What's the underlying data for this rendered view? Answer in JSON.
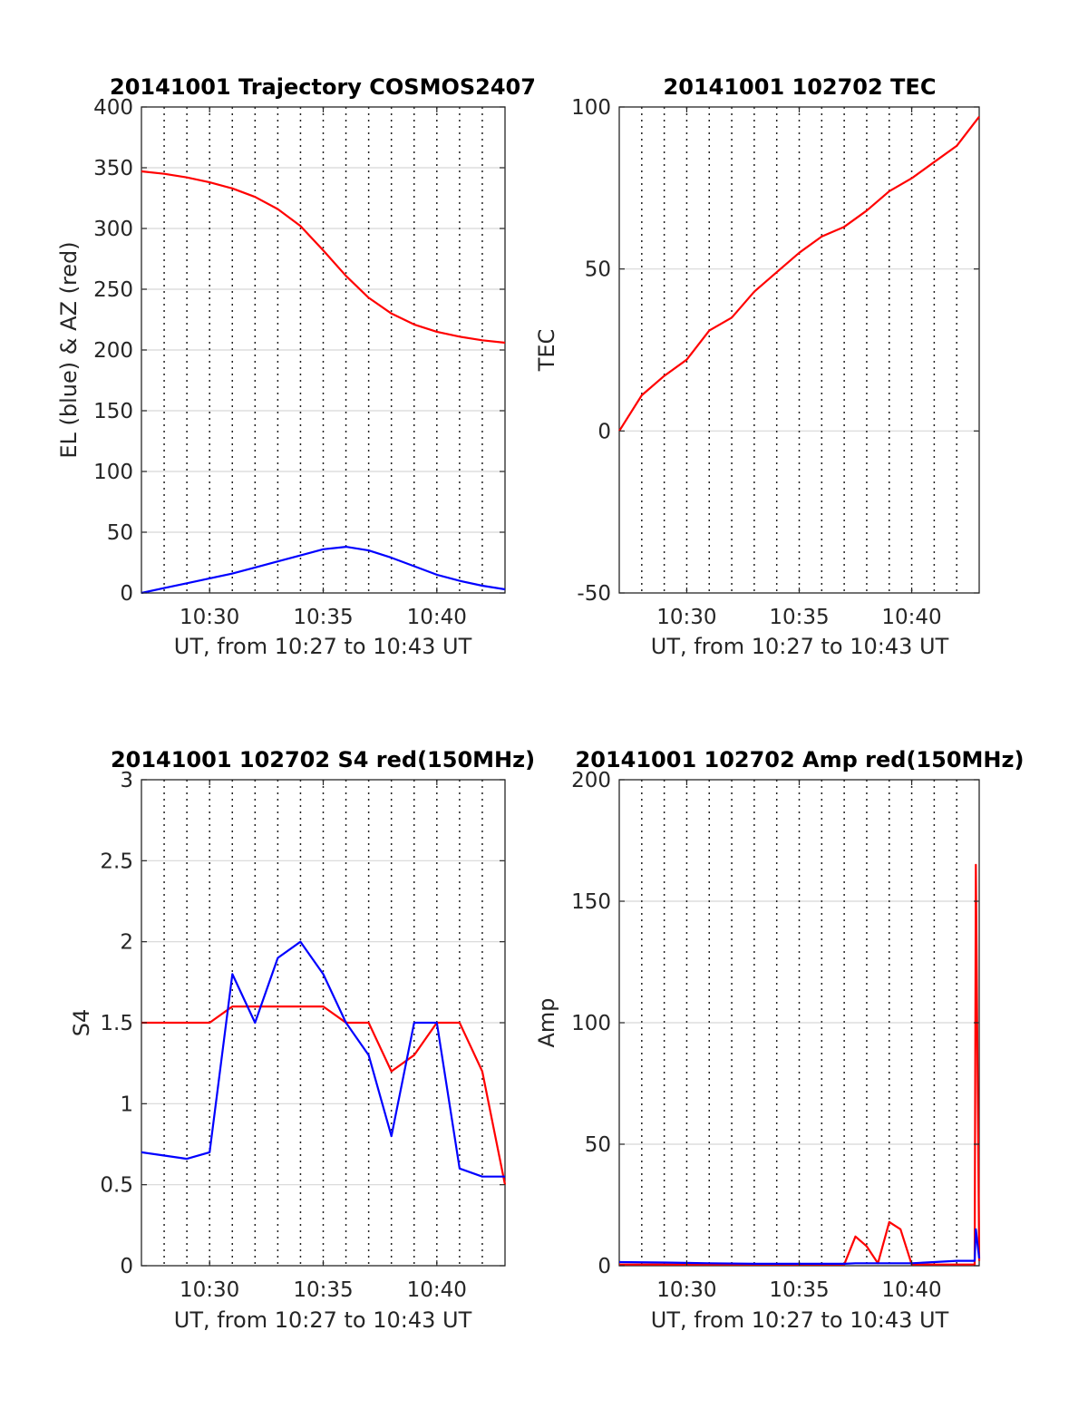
{
  "colors": {
    "red": "#ff0000",
    "blue": "#0000ff",
    "axis": "#262626"
  },
  "chart_data": [
    {
      "type": "line",
      "title": "20141001 Trajectory COSMOS2407",
      "xlabel": "UT, from 10:27 to 10:43 UT",
      "ylabel": "EL (blue) & AZ (red)",
      "xlim": [
        "10:27",
        "10:43"
      ],
      "ylim": [
        0,
        400
      ],
      "yticks": [
        "0",
        "50",
        "100",
        "150",
        "200",
        "250",
        "300",
        "350",
        "400"
      ],
      "xticks": [
        "10:30",
        "10:35",
        "10:40"
      ],
      "x": [
        "10:27",
        "10:28",
        "10:29",
        "10:30",
        "10:31",
        "10:32",
        "10:33",
        "10:34",
        "10:35",
        "10:36",
        "10:37",
        "10:38",
        "10:39",
        "10:40",
        "10:41",
        "10:42",
        "10:43"
      ],
      "series": [
        {
          "name": "AZ",
          "color": "red",
          "values": [
            347,
            345,
            342,
            338,
            333,
            326,
            316,
            302,
            282,
            261,
            243,
            230,
            221,
            215,
            211,
            208,
            206
          ]
        },
        {
          "name": "EL",
          "color": "blue",
          "values": [
            0,
            4,
            8,
            12,
            16,
            21,
            26,
            31,
            36,
            38,
            35,
            29,
            22,
            15,
            10,
            6,
            3
          ]
        }
      ],
      "grid": "on"
    },
    {
      "type": "line",
      "title": "20141001 102702 TEC",
      "xlabel": "UT, from 10:27 to 10:43 UT",
      "ylabel": "TEC",
      "xlim": [
        "10:27",
        "10:43"
      ],
      "ylim": [
        -50,
        100
      ],
      "yticks": [
        "-50",
        "0",
        "50",
        "100"
      ],
      "xticks": [
        "10:30",
        "10:35",
        "10:40"
      ],
      "x": [
        "10:27",
        "10:28",
        "10:29",
        "10:30",
        "10:31",
        "10:32",
        "10:33",
        "10:34",
        "10:35",
        "10:36",
        "10:37",
        "10:38",
        "10:39",
        "10:40",
        "10:41",
        "10:42",
        "10:43"
      ],
      "series": [
        {
          "name": "TEC",
          "color": "red",
          "values": [
            0,
            11,
            17,
            22,
            31,
            35,
            43,
            49,
            55,
            60,
            63,
            68,
            74,
            78,
            83,
            88,
            97
          ]
        }
      ],
      "grid": "on"
    },
    {
      "type": "line",
      "title": "20141001 102702 S4 red(150MHz)",
      "xlabel": "UT, from 10:27 to 10:43 UT",
      "ylabel": "S4",
      "xlim": [
        "10:27",
        "10:43"
      ],
      "ylim": [
        0,
        3
      ],
      "yticks": [
        "0",
        "0.5",
        "1",
        "1.5",
        "2",
        "2.5",
        "3"
      ],
      "xticks": [
        "10:30",
        "10:35",
        "10:40"
      ],
      "x": [
        "10:27",
        "10:28",
        "10:29",
        "10:30",
        "10:31",
        "10:32",
        "10:33",
        "10:34",
        "10:35",
        "10:36",
        "10:37",
        "10:38",
        "10:39",
        "10:40",
        "10:41",
        "10:42",
        "10:43"
      ],
      "series": [
        {
          "name": "S4 red",
          "color": "red",
          "values": [
            1.5,
            1.5,
            1.5,
            1.5,
            1.6,
            1.6,
            1.6,
            1.6,
            1.6,
            1.5,
            1.5,
            1.2,
            1.3,
            1.5,
            1.5,
            1.2,
            0.5
          ]
        },
        {
          "name": "S4 blue",
          "color": "blue",
          "values": [
            0.7,
            0.68,
            0.66,
            0.7,
            1.8,
            1.5,
            1.9,
            2.0,
            1.8,
            1.5,
            1.3,
            0.8,
            1.5,
            1.5,
            0.6,
            0.55,
            0.55
          ]
        }
      ],
      "grid": "on"
    },
    {
      "type": "line",
      "title": "20141001 102702 Amp red(150MHz)",
      "xlabel": "UT, from 10:27 to 10:43 UT",
      "ylabel": "Amp",
      "xlim": [
        "10:27",
        "10:43"
      ],
      "ylim": [
        0,
        200
      ],
      "yticks": [
        "0",
        "50",
        "100",
        "150",
        "200"
      ],
      "xticks": [
        "10:30",
        "10:35",
        "10:40"
      ],
      "x": [
        "10:27",
        "10:29",
        "10:31",
        "10:33",
        "10:35",
        "10:37",
        "10:37.5",
        "10:38",
        "10:38.5",
        "10:39",
        "10:39.5",
        "10:40",
        "10:41",
        "10:42",
        "10:42.8",
        "10:42.85",
        "10:43"
      ],
      "series": [
        {
          "name": "Amp red",
          "color": "red",
          "values": [
            0.5,
            0.5,
            0.5,
            0.5,
            0.5,
            0.5,
            12,
            8,
            1,
            18,
            15,
            0.5,
            0.5,
            0.5,
            0.5,
            165,
            2
          ]
        },
        {
          "name": "Amp blue",
          "color": "blue",
          "values": [
            1.5,
            1.3,
            1,
            0.8,
            0.8,
            0.8,
            1,
            1,
            1,
            1,
            1,
            1,
            1.5,
            2,
            2,
            15,
            3
          ]
        }
      ],
      "grid": "on"
    }
  ]
}
